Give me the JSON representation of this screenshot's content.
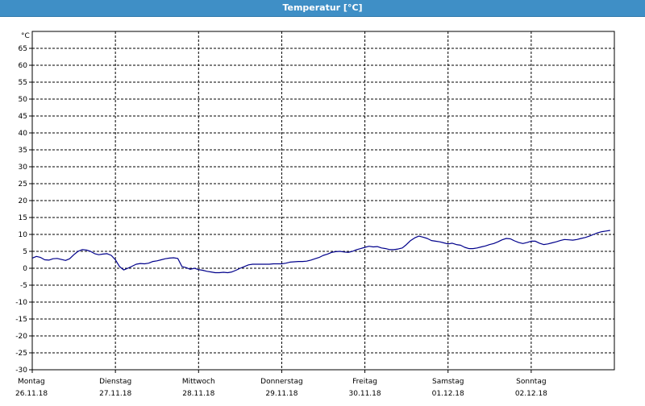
{
  "window": {
    "title": "Temperatur [°C]"
  },
  "chart_data": {
    "type": "line",
    "title": "Temperatur [°C]",
    "ylabel": "°C",
    "xlabel": "",
    "ylim": [
      -30,
      70
    ],
    "yticks": [
      65,
      60,
      55,
      50,
      45,
      40,
      35,
      30,
      25,
      20,
      15,
      10,
      5,
      0,
      -5,
      -10,
      -15,
      -20,
      -25,
      -30
    ],
    "xlim": [
      0,
      7
    ],
    "grid": true,
    "day_labels": [
      {
        "day": "Montag",
        "date": "26.11.18"
      },
      {
        "day": "Dienstag",
        "date": "27.11.18"
      },
      {
        "day": "Mittwoch",
        "date": "28.11.18"
      },
      {
        "day": "Donnerstag",
        "date": "29.11.18"
      },
      {
        "day": "Freitag",
        "date": "30.11.18"
      },
      {
        "day": "Samstag",
        "date": "01.12.18"
      },
      {
        "day": "Sonntag",
        "date": "02.12.18"
      }
    ],
    "series": [
      {
        "color": "#00008b",
        "x": [
          0,
          0.05,
          0.1,
          0.15,
          0.2,
          0.25,
          0.3,
          0.35,
          0.4,
          0.45,
          0.5,
          0.55,
          0.6,
          0.65,
          0.7,
          0.75,
          0.8,
          0.85,
          0.9,
          0.95,
          1.0,
          1.05,
          1.1,
          1.15,
          1.2,
          1.25,
          1.3,
          1.35,
          1.4,
          1.45,
          1.5,
          1.55,
          1.6,
          1.65,
          1.7,
          1.75,
          1.8,
          1.85,
          1.9,
          1.95,
          2.0,
          2.05,
          2.1,
          2.15,
          2.2,
          2.25,
          2.3,
          2.35,
          2.4,
          2.45,
          2.5,
          2.55,
          2.6,
          2.65,
          2.7,
          2.75,
          2.8,
          2.85,
          2.9,
          2.95,
          3.0,
          3.05,
          3.1,
          3.15,
          3.2,
          3.25,
          3.3,
          3.35,
          3.4,
          3.45,
          3.5,
          3.55,
          3.6,
          3.65,
          3.7,
          3.75,
          3.8,
          3.85,
          3.9,
          3.95,
          4.0,
          4.05,
          4.1,
          4.15,
          4.2,
          4.25,
          4.3,
          4.35,
          4.4,
          4.45,
          4.5,
          4.55,
          4.6,
          4.65,
          4.7,
          4.75,
          4.8,
          4.85,
          4.9,
          4.95,
          5.0,
          5.05,
          5.1,
          5.15,
          5.2,
          5.25,
          5.3,
          5.35,
          5.4,
          5.45,
          5.5,
          5.55,
          5.6,
          5.65,
          5.7,
          5.75,
          5.8,
          5.85,
          5.9,
          5.95,
          6.0,
          6.05,
          6.1,
          6.15,
          6.2,
          6.25,
          6.3,
          6.35,
          6.4,
          6.45,
          6.5,
          6.55,
          6.6,
          6.65,
          6.7,
          6.75,
          6.8,
          6.85,
          6.9,
          6.95
        ],
        "y": [
          3.0,
          3.5,
          3.2,
          2.5,
          2.4,
          2.8,
          2.9,
          2.6,
          2.3,
          2.8,
          4.0,
          5.0,
          5.5,
          5.4,
          5.0,
          4.3,
          4.0,
          4.2,
          4.3,
          3.8,
          2.5,
          0.5,
          -0.5,
          0.0,
          0.6,
          1.2,
          1.4,
          1.3,
          1.5,
          2.0,
          2.2,
          2.5,
          2.8,
          3.0,
          3.1,
          2.9,
          0.5,
          0.2,
          -0.3,
          0.0,
          -0.4,
          -0.6,
          -0.9,
          -1.1,
          -1.3,
          -1.3,
          -1.2,
          -1.3,
          -1.1,
          -0.6,
          0.0,
          0.5,
          1.0,
          1.2,
          1.2,
          1.2,
          1.2,
          1.2,
          1.3,
          1.3,
          1.3,
          1.5,
          1.8,
          1.9,
          2.0,
          2.0,
          2.1,
          2.4,
          2.8,
          3.2,
          3.8,
          4.2,
          4.7,
          4.9,
          5.0,
          4.8,
          4.7,
          5.0,
          5.5,
          5.8,
          6.2,
          6.5,
          6.3,
          6.4,
          6.0,
          5.8,
          5.5,
          5.5,
          5.7,
          6.0,
          7.0,
          8.2,
          9.0,
          9.5,
          9.2,
          8.8,
          8.2,
          8.0,
          7.8,
          7.5,
          7.2,
          7.4,
          7.0,
          6.8,
          6.2,
          5.8,
          5.8,
          6.0,
          6.3,
          6.6,
          7.0,
          7.3,
          7.8,
          8.4,
          8.8,
          8.7,
          8.1,
          7.6,
          7.3,
          7.6,
          8.0,
          8.0,
          7.4,
          7.0,
          7.2,
          7.5,
          7.8,
          8.2,
          8.5,
          8.4,
          8.3,
          8.5,
          8.8,
          9.1,
          9.5,
          10.0,
          10.5,
          10.8,
          11.0,
          11.2
        ]
      }
    ]
  }
}
